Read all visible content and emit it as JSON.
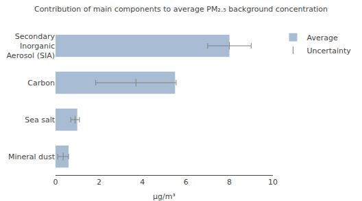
{
  "chart_data": {
    "type": "bar",
    "orientation": "horizontal",
    "title": "Contribution of main components to average PM₂.₅ background concentration",
    "categories": [
      "Mineral dust",
      "Sea salt",
      "Carbon",
      "Secondary\nInorganic\nAerosol (SIA)"
    ],
    "series": [
      {
        "name": "Average",
        "type": "bar",
        "color": "#a8bcd4",
        "values": [
          0.6,
          1.0,
          5.5,
          8.0
        ]
      },
      {
        "name": "Uncertainty",
        "type": "scatter",
        "color": "#808080",
        "values": [
          0.35,
          0.9,
          3.7,
          8.0
        ],
        "errors": [
          0.25,
          0.2,
          1.85,
          1.0
        ]
      }
    ],
    "xlabel": "μg/m³",
    "xlim": [
      0,
      10
    ],
    "xticks": [
      0,
      2,
      4,
      6,
      8,
      10
    ],
    "grid": false
  }
}
